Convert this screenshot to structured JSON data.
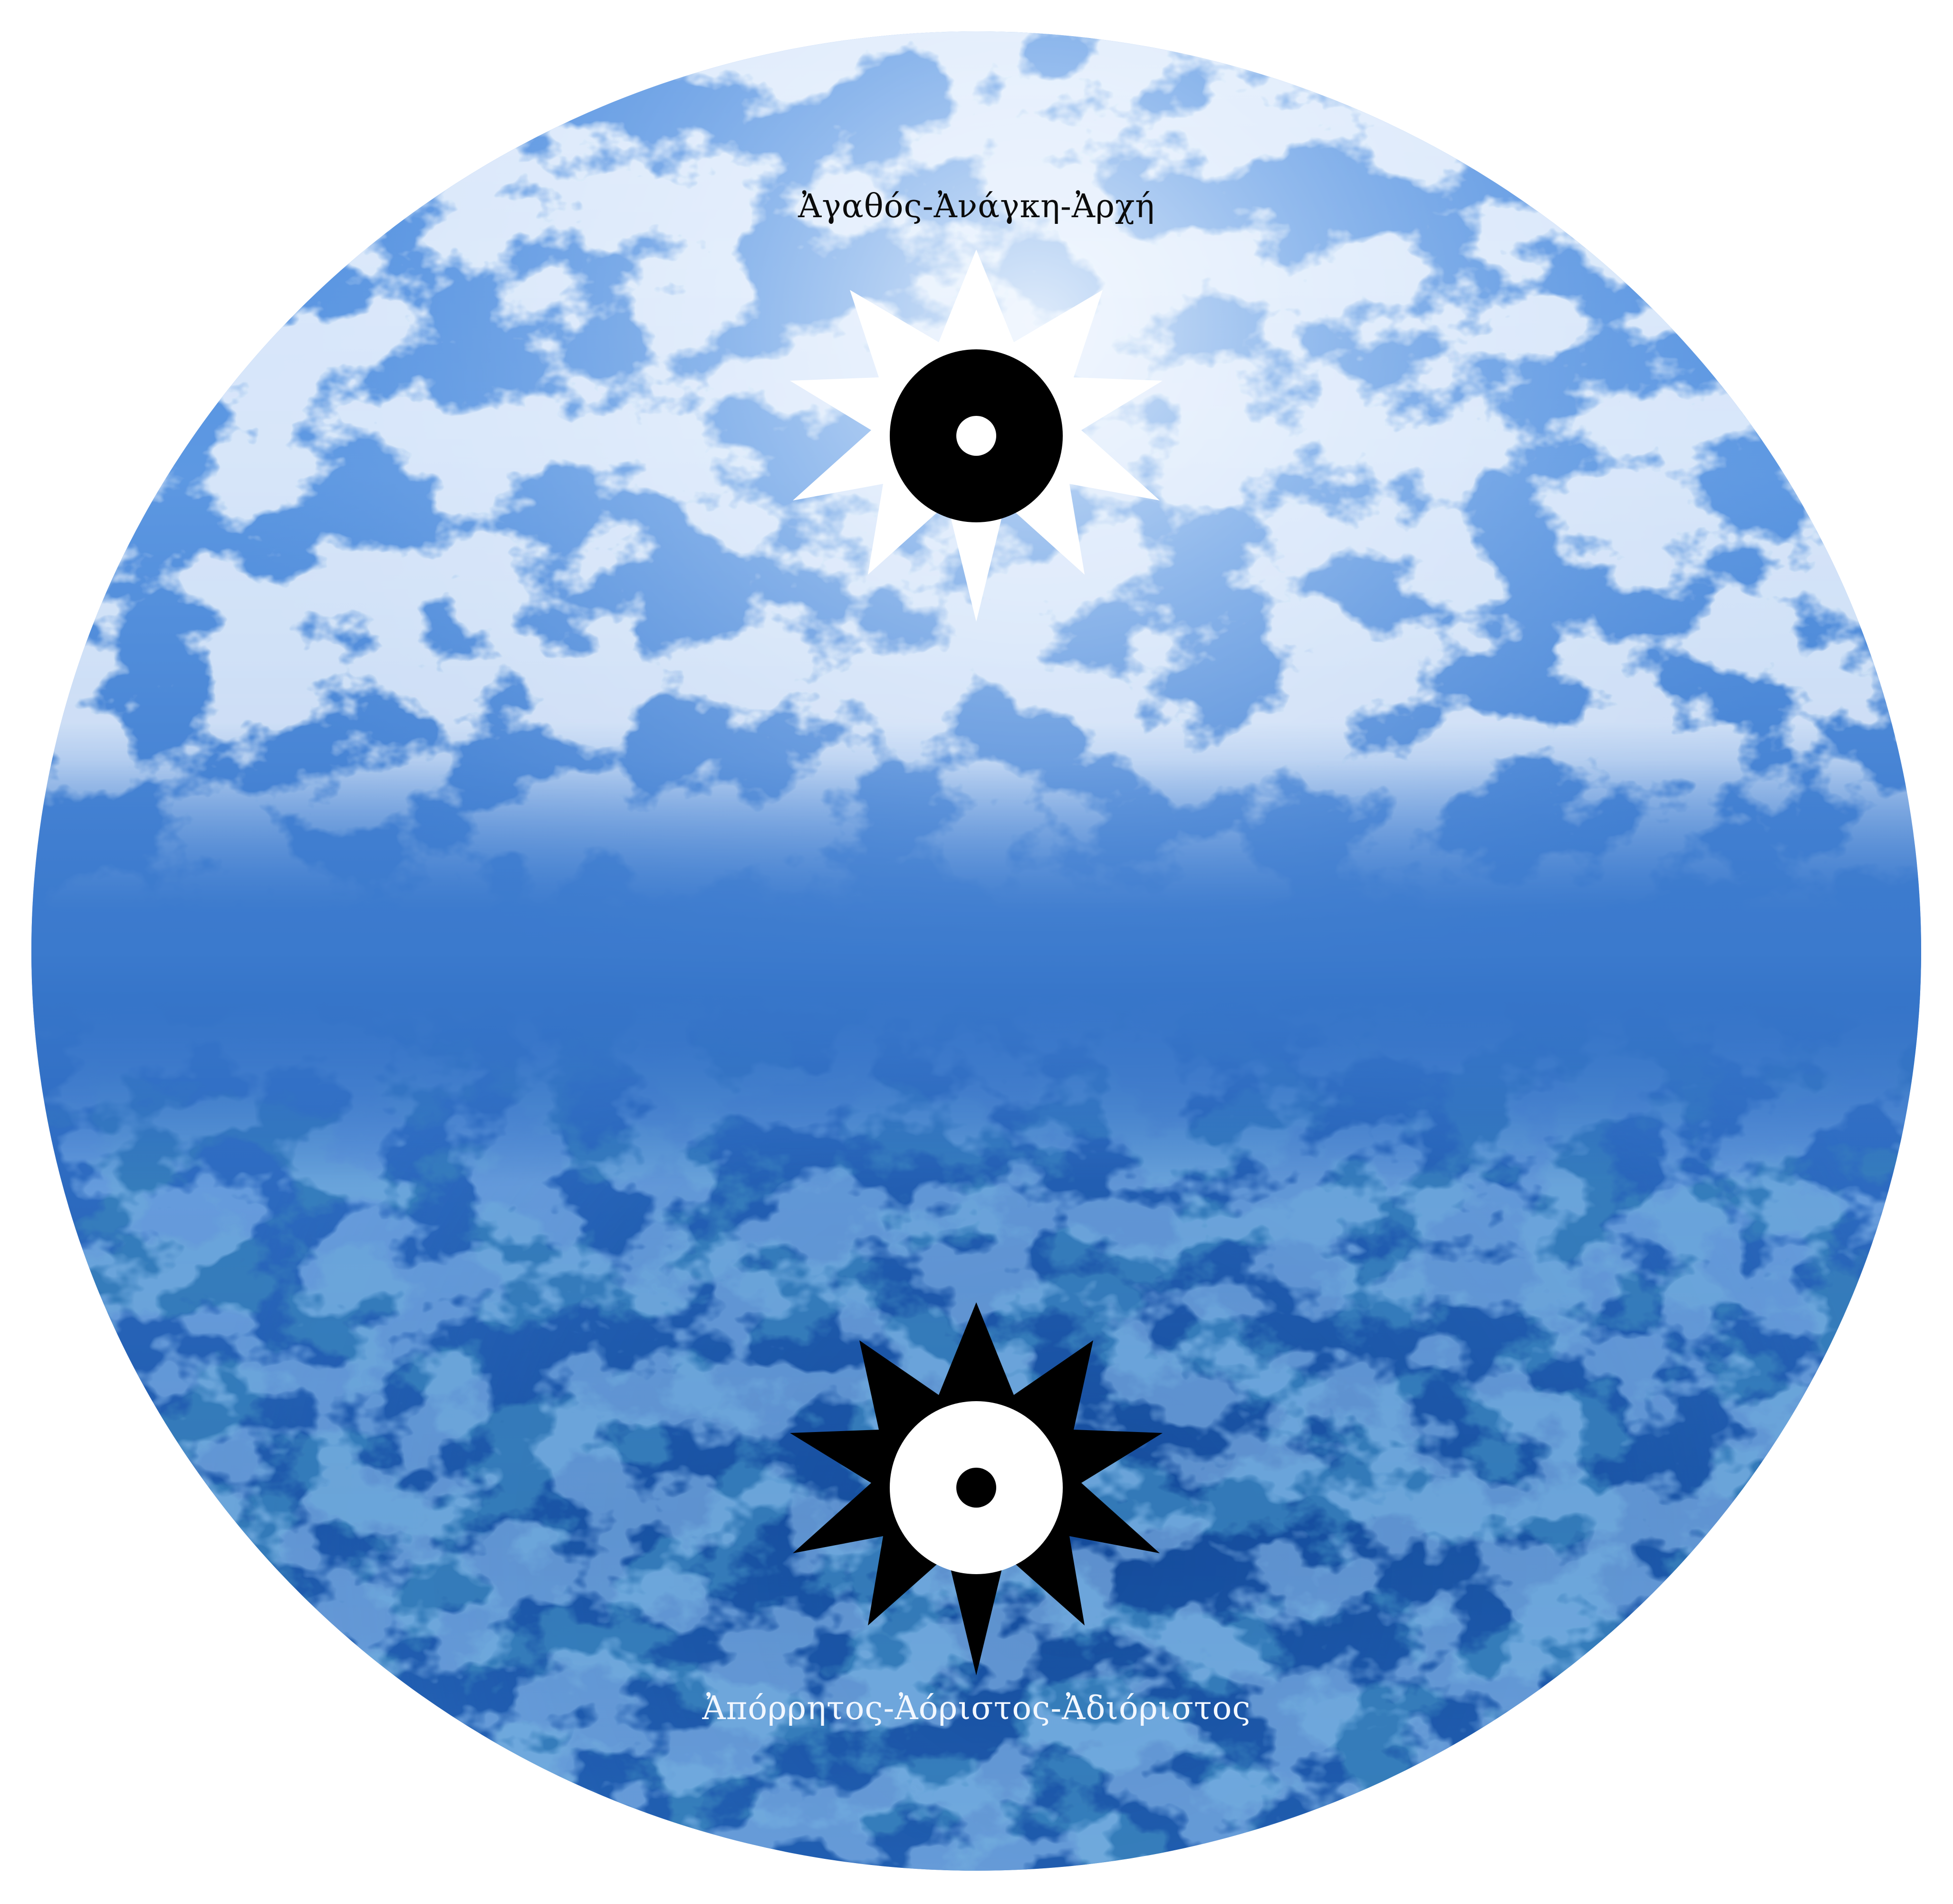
{
  "disc": {
    "top_caption": "Ἀγαθός-Ἀνάγκη-Ἀρχή",
    "bottom_caption": "Ἀπόρρητος-Ἀόριστος-Ἀδιόριστος"
  },
  "colors": {
    "background": "#ffffff",
    "sea_light": "#cfe2fb",
    "sea_mid": "#3f7fd3",
    "sea_deep": "#114a98",
    "top_star_fill": "#ffffff",
    "top_eye_fill": "#000000",
    "bottom_star_fill": "#000000",
    "bottom_eye_fill": "#ffffff"
  },
  "icons": {
    "upper": "white-star-with-black-eye-icon",
    "lower": "black-star-with-white-eye-icon"
  }
}
